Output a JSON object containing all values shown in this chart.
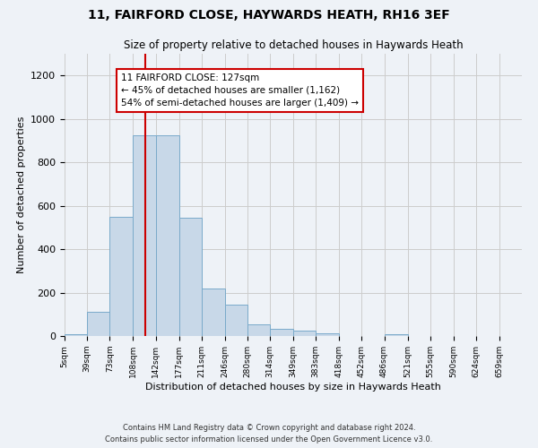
{
  "title": "11, FAIRFORD CLOSE, HAYWARDS HEATH, RH16 3EF",
  "subtitle": "Size of property relative to detached houses in Haywards Heath",
  "xlabel": "Distribution of detached houses by size in Haywards Heath",
  "ylabel": "Number of detached properties",
  "bar_color": "#c8d8e8",
  "bar_edge_color": "#7aaaca",
  "grid_color": "#cccccc",
  "vline_value": 127,
  "vline_color": "#cc0000",
  "annotation_text": "11 FAIRFORD CLOSE: 127sqm\n← 45% of detached houses are smaller (1,162)\n54% of semi-detached houses are larger (1,409) →",
  "annotation_box_color": "#cc0000",
  "bin_edges": [
    5,
    39,
    73,
    108,
    142,
    177,
    211,
    246,
    280,
    314,
    349,
    383,
    418,
    452,
    486,
    521,
    555,
    590,
    624,
    659,
    693
  ],
  "bin_counts": [
    8,
    112,
    550,
    925,
    925,
    545,
    220,
    145,
    52,
    32,
    25,
    12,
    0,
    0,
    10,
    0,
    0,
    0,
    0,
    0
  ],
  "ylim": [
    0,
    1300
  ],
  "yticks": [
    0,
    200,
    400,
    600,
    800,
    1000,
    1200
  ],
  "footer_line1": "Contains HM Land Registry data © Crown copyright and database right 2024.",
  "footer_line2": "Contains public sector information licensed under the Open Government Licence v3.0.",
  "background_color": "#eef2f7",
  "plot_bg_color": "#eef2f7"
}
